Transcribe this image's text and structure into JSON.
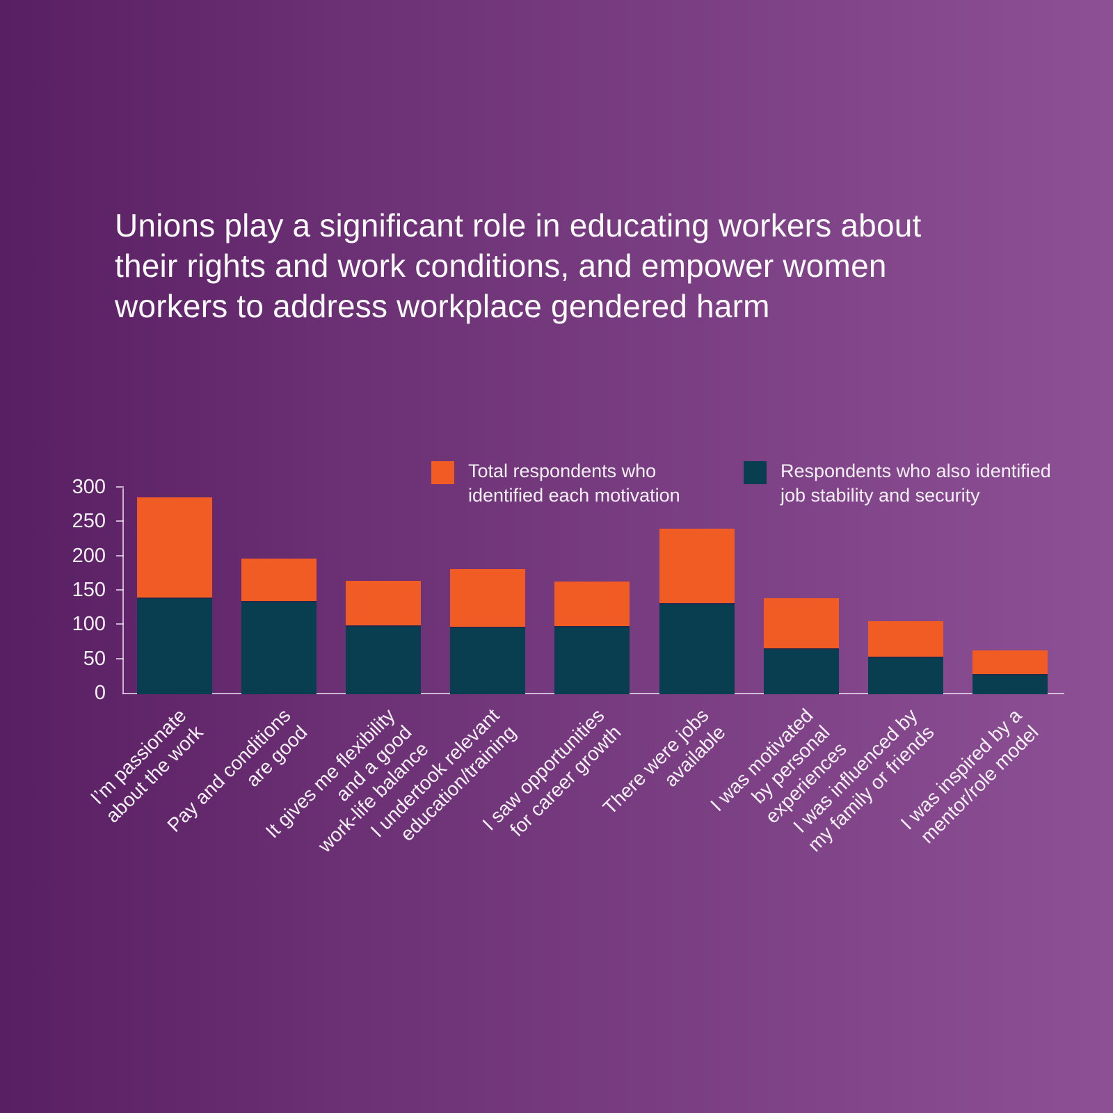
{
  "title": "Unions play a significant role in educating workers about\ntheir rights and work conditions, and empower women\nworkers to address workplace gendered harm",
  "legend": [
    {
      "label": "Total respondents who\nidentified each motivation",
      "color": "#F15C25"
    },
    {
      "label": "Respondents who also identified\njob stability and security",
      "color": "#083E50"
    }
  ],
  "colors": {
    "background_left": "#581F62",
    "background_right": "#8D5094",
    "orange": "#F15C25",
    "teal": "#083E50",
    "axis": "rgba(238,228,242,0.75)",
    "text": "#FFFFFF"
  },
  "chart_data": {
    "type": "bar",
    "subtype": "overlay-total-vs-subset",
    "title": "Unions play a significant role in educating workers about their rights and work conditions, and empower women workers to address workplace gendered harm",
    "xlabel": "",
    "ylabel": "",
    "ylim": [
      0,
      300
    ],
    "yticks": [
      0,
      50,
      100,
      150,
      200,
      250,
      300
    ],
    "grid": false,
    "legend_position": "top",
    "categories": [
      "I’m passionate\nabout the work",
      "Pay and conditions\nare good",
      "It gives me flexibility\nand a good\nwork-life balance",
      "I undertook relevant\neducation/training",
      "I saw opportunities\nfor career growth",
      "There were jobs\navailable",
      "I was motivated\nby personal\nexperiences",
      "I was influenced by\nmy family or friends",
      "I was inspired by a\nmentor/role model"
    ],
    "series": [
      {
        "name": "Total respondents who identified each motivation",
        "color": "#F15C25",
        "values": [
          287,
          198,
          165,
          182,
          164,
          241,
          140,
          106,
          64
        ]
      },
      {
        "name": "Respondents who also identified job stability and security",
        "color": "#083E50",
        "values": [
          141,
          136,
          100,
          98,
          99,
          133,
          67,
          55,
          29
        ]
      }
    ]
  }
}
